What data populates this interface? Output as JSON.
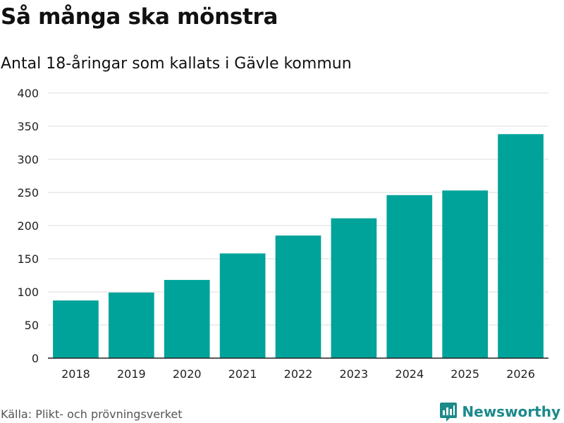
{
  "header": {
    "title": "Så många ska mönstra",
    "subtitle": "Antal 18-åringar som kallats i Gävle kommun"
  },
  "footer": {
    "source": "Källa: Plikt- och prövningsverket",
    "brand": "Newsworthy",
    "brand_icon": "newsworthy-logo-icon"
  },
  "colors": {
    "bar": "#00a39a",
    "grid": "#dcdcdc",
    "axis": "#222222",
    "brand": "#1c8a8a"
  },
  "chart_data": {
    "type": "bar",
    "title": "Så många ska mönstra",
    "subtitle": "Antal 18-åringar som kallats i Gävle kommun",
    "xlabel": "",
    "ylabel": "",
    "categories": [
      "2018",
      "2019",
      "2020",
      "2021",
      "2022",
      "2023",
      "2024",
      "2025",
      "2026"
    ],
    "values": [
      87,
      99,
      118,
      158,
      185,
      211,
      246,
      253,
      338
    ],
    "ylim": [
      0,
      400
    ],
    "yticks": [
      0,
      50,
      100,
      150,
      200,
      250,
      300,
      350,
      400
    ],
    "grid": true,
    "legend": "none"
  }
}
